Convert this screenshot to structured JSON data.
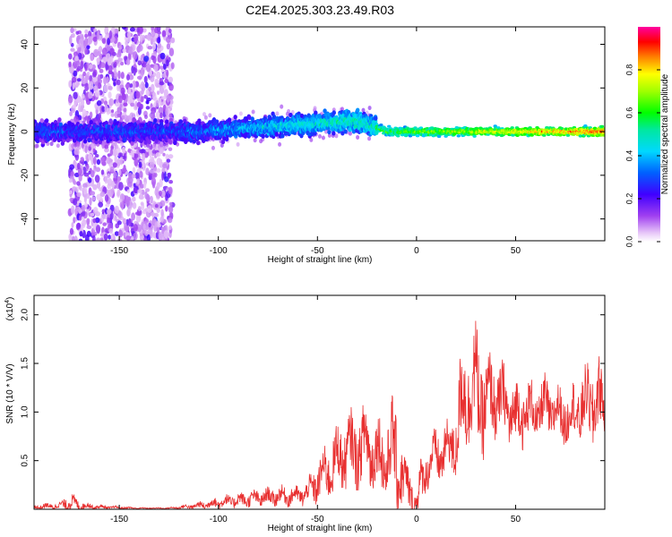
{
  "title": "C2E4.2025.303.23.49.R03",
  "chart_data": [
    {
      "type": "heatmap",
      "xlabel": "Height of straight line (km)",
      "ylabel": "Frequency (Hz)",
      "xlim": [
        -193,
        95
      ],
      "ylim": [
        -50,
        48
      ],
      "xticks": [
        -150,
        -100,
        -50,
        0,
        50
      ],
      "yticks": [
        -40,
        -20,
        0,
        20,
        40
      ],
      "colorbar": {
        "label": "Normalized spectral amplitude",
        "range": [
          0,
          1
        ],
        "ticks": [
          0.0,
          0.2,
          0.4,
          0.6,
          0.8
        ],
        "colormap": "rainbow (purple-blue-cyan-green-yellow-red)"
      },
      "features": [
        {
          "name": "main band",
          "x_range": [
            -193,
            95
          ],
          "frequency_center_start": 0,
          "frequency_center_mid": 5,
          "frequency_center_end": 0
        },
        {
          "name": "broadband scatter",
          "x_range": [
            -175,
            -123
          ],
          "frequency_range": [
            -50,
            48
          ]
        }
      ]
    },
    {
      "type": "line",
      "xlabel": "Height of straight line (km)",
      "ylabel": "SNR (10 * V/V)",
      "yscale_label": "(x10",
      "yscale_exp": "4",
      "xlim": [
        -193,
        95
      ],
      "ylim": [
        0,
        2.2
      ],
      "xticks": [
        -150,
        -100,
        -50,
        0,
        50
      ],
      "yticks": [
        0.5,
        1.0,
        1.5,
        2.0
      ],
      "color": "#e83030",
      "envelope": {
        "x": [
          -193,
          -180,
          -175,
          -170,
          -160,
          -140,
          -125,
          -110,
          -100,
          -90,
          -80,
          -70,
          -60,
          -55,
          -50,
          -45,
          -40,
          -35,
          -30,
          -25,
          -20,
          -15,
          -12,
          -10,
          -8,
          -5,
          -2,
          0,
          2,
          5,
          10,
          15,
          20,
          22,
          25,
          28,
          30,
          35,
          40,
          45,
          50,
          55,
          60,
          65,
          70,
          75,
          80,
          85,
          90,
          95
        ],
        "base": [
          0.02,
          0.03,
          0.06,
          0.03,
          0.02,
          0.01,
          0.01,
          0.03,
          0.06,
          0.08,
          0.1,
          0.12,
          0.12,
          0.15,
          0.25,
          0.35,
          0.45,
          0.55,
          0.55,
          0.6,
          0.5,
          0.45,
          0.55,
          0.4,
          0.35,
          0.15,
          0.1,
          0.02,
          0.2,
          0.4,
          0.5,
          0.55,
          0.65,
          0.9,
          1.1,
          1.2,
          1.1,
          1.0,
          1.1,
          1.0,
          0.9,
          0.95,
          0.95,
          1.0,
          0.95,
          0.9,
          0.95,
          1.0,
          1.05,
          1.0
        ],
        "amp": [
          0.04,
          0.06,
          0.16,
          0.08,
          0.03,
          0.01,
          0.01,
          0.06,
          0.1,
          0.12,
          0.14,
          0.16,
          0.16,
          0.2,
          0.35,
          0.45,
          0.55,
          0.6,
          0.6,
          0.7,
          0.6,
          0.7,
          0.8,
          0.9,
          0.6,
          0.45,
          0.4,
          0.3,
          0.4,
          0.35,
          0.45,
          0.45,
          0.6,
          0.9,
          1.0,
          0.9,
          1.05,
          0.8,
          0.65,
          0.6,
          0.55,
          0.55,
          0.45,
          0.5,
          0.45,
          0.45,
          0.5,
          0.6,
          0.75,
          0.6
        ]
      }
    }
  ]
}
